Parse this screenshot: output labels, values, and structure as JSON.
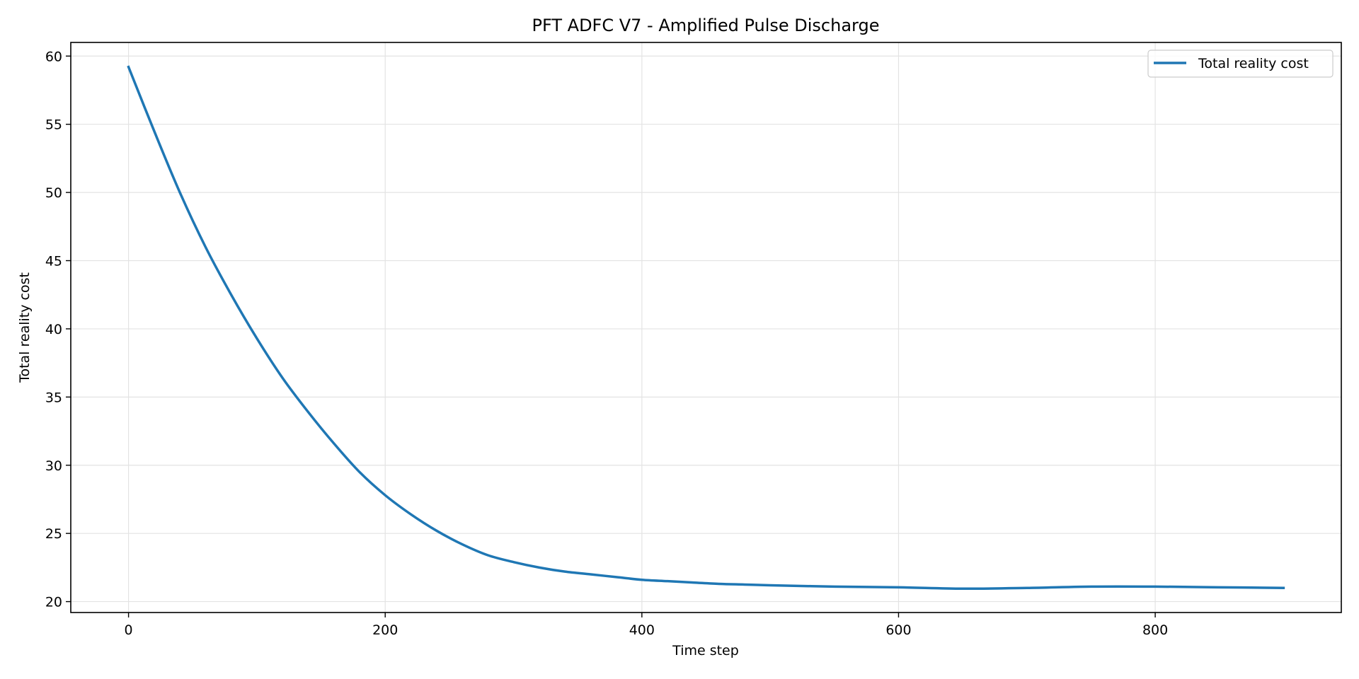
{
  "chart_data": {
    "type": "line",
    "title": "PFT ADFC V7 - Amplified Pulse Discharge",
    "xlabel": "Time step",
    "ylabel": "Total reality cost",
    "xlim": [
      -45,
      945
    ],
    "ylim": [
      19.2,
      61.0
    ],
    "xticks": [
      0,
      200,
      400,
      600,
      800
    ],
    "yticks": [
      20,
      25,
      30,
      35,
      40,
      45,
      50,
      55,
      60
    ],
    "grid": true,
    "legend_position": "top-right",
    "series": [
      {
        "name": "Total reality cost",
        "color": "#1f77b4",
        "x": [
          0,
          20,
          40,
          60,
          80,
          100,
          120,
          140,
          160,
          180,
          200,
          220,
          240,
          260,
          280,
          300,
          320,
          340,
          360,
          380,
          400,
          420,
          440,
          460,
          480,
          500,
          550,
          600,
          650,
          700,
          750,
          800,
          850,
          900
        ],
        "y": [
          59.2,
          54.5,
          50.0,
          46.0,
          42.5,
          39.3,
          36.4,
          33.9,
          31.6,
          29.5,
          27.8,
          26.4,
          25.2,
          24.2,
          23.4,
          22.9,
          22.5,
          22.2,
          22.0,
          21.8,
          21.6,
          21.5,
          21.4,
          21.3,
          21.25,
          21.2,
          21.1,
          21.05,
          20.95,
          21.0,
          21.1,
          21.1,
          21.05,
          21.0
        ]
      }
    ]
  }
}
